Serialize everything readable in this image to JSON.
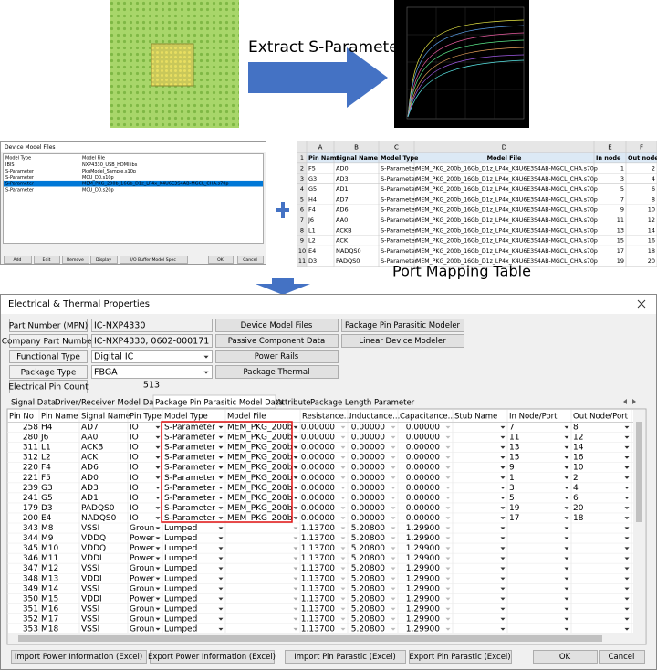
{
  "top": {
    "extract_label": "Extract S-Parameter",
    "mapping_caption": "Port Mapping Table"
  },
  "device_model_files": {
    "title": "Device Model Files",
    "columns": [
      "Model Type",
      "Model File"
    ],
    "rows": [
      {
        "model_type": "IBIS",
        "model_file": "NXP4330_USB_HDMI.ibs",
        "selected": false
      },
      {
        "model_type": "S-Parameter",
        "model_file": "PkgModel_Sample.s10p",
        "selected": false
      },
      {
        "model_type": "S-Parameter",
        "model_file": "MCU_D0.s10p",
        "selected": false
      },
      {
        "model_type": "S-Parameter",
        "model_file": "MEM_PKG_200b_16Gb_D1z_LP4x_K4U6E3S4AB-MGCL_CHA.s70p",
        "selected": true
      },
      {
        "model_type": "S-Parameter",
        "model_file": "MCU_D0.s20p",
        "selected": false
      }
    ],
    "buttons": [
      "Add",
      "Edit",
      "Remove",
      "Display",
      "I/O Buffer Model Spec",
      "OK",
      "Cancel"
    ]
  },
  "spreadsheet": {
    "column_letters": [
      "A",
      "B",
      "C",
      "D",
      "E",
      "F"
    ],
    "row_numbers": [
      1,
      2,
      3,
      4,
      5,
      6,
      7,
      8,
      9,
      10,
      11
    ],
    "columns": [
      "Pin Name",
      "Signal Name",
      "Model Type",
      "Model File",
      "In node",
      "Out node"
    ],
    "rows": [
      [
        "F5",
        "AD0",
        "S-Parameter",
        "MEM_PKG_200b_16Gb_D1z_LP4x_K4U6E3S4AB-MGCL_CHA.s70p",
        1,
        2
      ],
      [
        "G3",
        "AD3",
        "S-Parameter",
        "MEM_PKG_200b_16Gb_D1z_LP4x_K4U6E3S4AB-MGCL_CHA.s70p",
        3,
        4
      ],
      [
        "G5",
        "AD1",
        "S-Parameter",
        "MEM_PKG_200b_16Gb_D1z_LP4x_K4U6E3S4AB-MGCL_CHA.s70p",
        5,
        6
      ],
      [
        "H4",
        "AD7",
        "S-Parameter",
        "MEM_PKG_200b_16Gb_D1z_LP4x_K4U6E3S4AB-MGCL_CHA.s70p",
        7,
        8
      ],
      [
        "F4",
        "AD6",
        "S-Parameter",
        "MEM_PKG_200b_16Gb_D1z_LP4x_K4U6E3S4AB-MGCL_CHA.s70p",
        9,
        10
      ],
      [
        "J6",
        "AA0",
        "S-Parameter",
        "MEM_PKG_200b_16Gb_D1z_LP4x_K4U6E3S4AB-MGCL_CHA.s70p",
        11,
        12
      ],
      [
        "L1",
        "ACKB",
        "S-Parameter",
        "MEM_PKG_200b_16Gb_D1z_LP4x_K4U6E3S4AB-MGCL_CHA.s70p",
        13,
        14
      ],
      [
        "L2",
        "ACK",
        "S-Parameter",
        "MEM_PKG_200b_16Gb_D1z_LP4x_K4U6E3S4AB-MGCL_CHA.s70p",
        15,
        16
      ],
      [
        "E4",
        "NADQS0",
        "S-Parameter",
        "MEM_PKG_200b_16Gb_D1z_LP4x_K4U6E3S4AB-MGCL_CHA.s70p",
        17,
        18
      ],
      [
        "D3",
        "PADQS0",
        "S-Parameter",
        "MEM_PKG_200b_16Gb_D1z_LP4x_K4U6E3S4AB-MGCL_CHA.s70p",
        19,
        20
      ]
    ]
  },
  "dialog": {
    "title": "Electrical & Thermal Properties",
    "fields": [
      {
        "label": "Part Number (MPN)",
        "value": "IC-NXP4330"
      },
      {
        "label": "Company Part Number",
        "value": "IC-NXP4330, 0602-000171"
      },
      {
        "label": "Functional Type",
        "value": "Digital IC"
      },
      {
        "label": "Package Type",
        "value": "FBGA"
      },
      {
        "label": "Electrical Pin Count",
        "value": 513
      }
    ],
    "buttons": [
      "Device Model Files",
      "Passive Component Data",
      "Power Rails",
      "Package Thermal",
      "Package Pin Parasitic Modeler",
      "Linear Device Modeler"
    ],
    "tabs": [
      {
        "label": "Signal Data",
        "active": false
      },
      {
        "label": "Driver/Receiver Model Data",
        "active": false
      },
      {
        "label": "Package Pin Parasitic Model Data",
        "active": true
      },
      {
        "label": "Attribute",
        "active": false
      },
      {
        "label": "Package Length Parameter",
        "active": false
      }
    ],
    "table": {
      "columns": [
        "Pin No",
        "Pin Name",
        "Signal Name",
        "Pin Type",
        "Model Type",
        "Model File",
        "Resistance...",
        "Inductance...",
        "Capacitance...",
        "Stub Name",
        "In Node/Port",
        "Out Node/Port"
      ],
      "rows": [
        [
          258,
          "H4",
          "AD7",
          "IO",
          "S-Parameter",
          "MEM_PKG_200b",
          "0.00000",
          "0.00000",
          "0.00000",
          null,
          7,
          8
        ],
        [
          280,
          "J6",
          "AA0",
          "IO",
          "S-Parameter",
          "MEM_PKG_200b",
          "0.00000",
          "0.00000",
          "0.00000",
          null,
          11,
          12
        ],
        [
          311,
          "L1",
          "ACKB",
          "IO",
          "S-Parameter",
          "MEM_PKG_200b",
          "0.00000",
          "0.00000",
          "0.00000",
          null,
          13,
          14
        ],
        [
          312,
          "L2",
          "ACK",
          "IO",
          "S-Parameter",
          "MEM_PKG_200b",
          "0.00000",
          "0.00000",
          "0.00000",
          null,
          15,
          16
        ],
        [
          220,
          "F4",
          "AD6",
          "IO",
          "S-Parameter",
          "MEM_PKG_200b",
          "0.00000",
          "0.00000",
          "0.00000",
          null,
          9,
          10
        ],
        [
          221,
          "F5",
          "AD0",
          "IO",
          "S-Parameter",
          "MEM_PKG_200b",
          "0.00000",
          "0.00000",
          "0.00000",
          null,
          1,
          2
        ],
        [
          239,
          "G3",
          "AD3",
          "IO",
          "S-Parameter",
          "MEM_PKG_200b",
          "0.00000",
          "0.00000",
          "0.00000",
          null,
          3,
          4
        ],
        [
          241,
          "G5",
          "AD1",
          "IO",
          "S-Parameter",
          "MEM_PKG_200b",
          "0.00000",
          "0.00000",
          "0.00000",
          null,
          5,
          6
        ],
        [
          179,
          "D3",
          "PADQS0",
          "IO",
          "S-Parameter",
          "MEM_PKG_200b",
          "0.00000",
          "0.00000",
          "0.00000",
          null,
          19,
          20
        ],
        [
          200,
          "E4",
          "NADQS0",
          "IO",
          "S-Parameter",
          "MEM_PKG_200b",
          "0.00000",
          "0.00000",
          "0.00000",
          null,
          17,
          18
        ],
        [
          343,
          "M8",
          "VSSI",
          "Groun",
          "Lumped",
          null,
          "1.13700",
          "5.20800",
          "1.29900",
          null,
          null,
          null
        ],
        [
          344,
          "M9",
          "VDDQ",
          "Power",
          "Lumped",
          null,
          "1.13700",
          "5.20800",
          "1.29900",
          null,
          null,
          null
        ],
        [
          345,
          "M10",
          "VDDQ",
          "Power",
          "Lumped",
          null,
          "1.13700",
          "5.20800",
          "1.29900",
          null,
          null,
          null
        ],
        [
          346,
          "M11",
          "VDDI",
          "Power",
          "Lumped",
          null,
          "1.13700",
          "5.20800",
          "1.29900",
          null,
          null,
          null
        ],
        [
          347,
          "M12",
          "VSSI",
          "Groun",
          "Lumped",
          null,
          "1.13700",
          "5.20800",
          "1.29900",
          null,
          null,
          null
        ],
        [
          348,
          "M13",
          "VDDI",
          "Power",
          "Lumped",
          null,
          "1.13700",
          "5.20800",
          "1.29900",
          null,
          null,
          null
        ],
        [
          349,
          "M14",
          "VSSI",
          "Groun",
          "Lumped",
          null,
          "1.13700",
          "5.20800",
          "1.29900",
          null,
          null,
          null
        ],
        [
          350,
          "M15",
          "VDDI",
          "Power",
          "Lumped",
          null,
          "1.13700",
          "5.20800",
          "1.29900",
          null,
          null,
          null
        ],
        [
          351,
          "M16",
          "VSSI",
          "Groun",
          "Lumped",
          null,
          "1.13700",
          "5.20800",
          "1.29900",
          null,
          null,
          null
        ],
        [
          352,
          "M17",
          "VSSI",
          "Groun",
          "Lumped",
          null,
          "1.13700",
          "5.20800",
          "1.29900",
          null,
          null,
          null
        ],
        [
          353,
          "M18",
          "VSSI",
          "Groun",
          "Lumped",
          null,
          "1.13700",
          "5.20800",
          "1.29900",
          null,
          null,
          null
        ]
      ]
    },
    "footer_buttons": [
      "Import Power Information (Excel)",
      "Export Power Information (Excel)",
      "Import Pin Parastic (Excel)",
      "Export Pin Parastic (Excel)",
      "OK",
      "Cancel"
    ]
  }
}
